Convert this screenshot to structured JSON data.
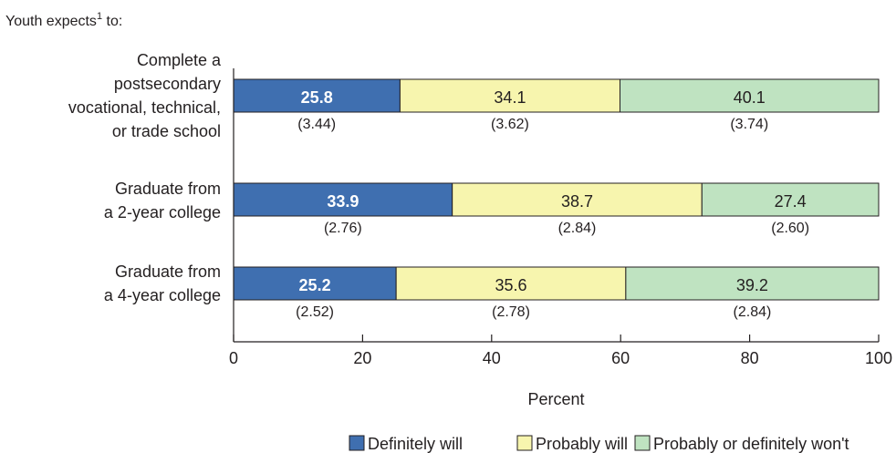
{
  "header": {
    "text": "Youth expects",
    "superscript": "1",
    "suffix": " to:"
  },
  "chart_data": {
    "type": "bar",
    "orientation": "horizontal",
    "stacked": true,
    "categories": [
      [
        "Complete a",
        "postsecondary",
        "vocational, technical,",
        "or trade school"
      ],
      [
        "Graduate from",
        "a 2-year college"
      ],
      [
        "Graduate from",
        "a 4-year college"
      ]
    ],
    "series": [
      {
        "name": "Definitely will",
        "color": "#3f6fb0",
        "label_color": "#ffffff",
        "label_bold": true,
        "values": [
          25.8,
          33.9,
          25.2
        ],
        "labels": [
          "25.8",
          "33.9",
          "25.2"
        ],
        "se": [
          "(3.44)",
          "(2.76)",
          "(2.52)"
        ]
      },
      {
        "name": "Probably will",
        "color": "#f7f5ae",
        "label_color": "#231f20",
        "label_bold": false,
        "values": [
          34.1,
          38.7,
          35.6
        ],
        "labels": [
          "34.1",
          "38.7",
          "35.6"
        ],
        "se": [
          "(3.62)",
          "(2.84)",
          "(2.78)"
        ]
      },
      {
        "name": "Probably or definitely won't",
        "color": "#bfe3c1",
        "label_color": "#231f20",
        "label_bold": false,
        "values": [
          40.1,
          27.4,
          39.2
        ],
        "labels": [
          "40.1",
          "27.4",
          "39.2"
        ],
        "se": [
          "(3.74)",
          "(2.60)",
          "(2.84)"
        ]
      }
    ],
    "xlabel": "Percent",
    "xlim": [
      0,
      100
    ],
    "xticks": [
      "0",
      "20",
      "40",
      "60",
      "80",
      "100"
    ],
    "grid": false,
    "legend_position": "bottom-right"
  }
}
